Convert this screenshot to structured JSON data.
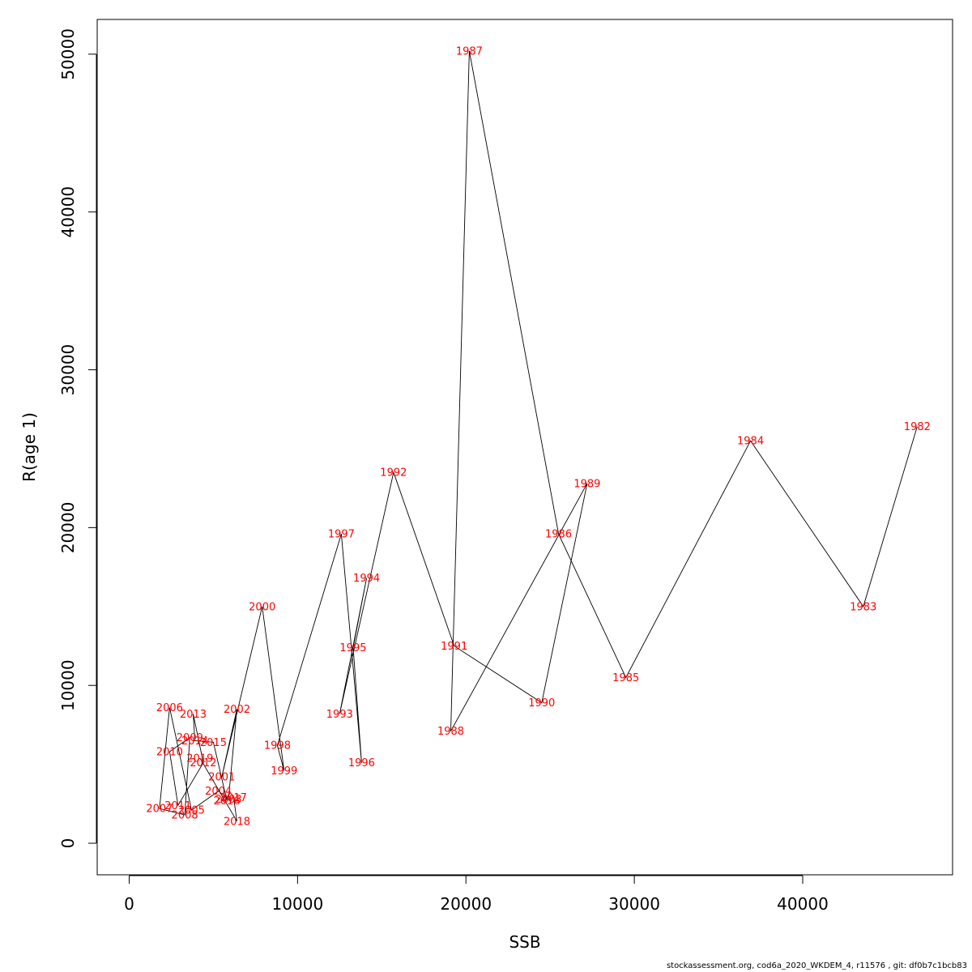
{
  "chart_data": {
    "type": "scatter",
    "xlabel": "SSB",
    "ylabel": "R(age 1)",
    "xlim": [
      -1900,
      48900
    ],
    "ylim": [
      -2000,
      52200
    ],
    "xticks": [
      0,
      10000,
      20000,
      30000,
      40000
    ],
    "yticks": [
      0,
      10000,
      20000,
      30000,
      40000,
      50000
    ],
    "label_color": "#ff0000",
    "line_color": "#000000",
    "points": [
      {
        "year": "1982",
        "x": 46800,
        "y": 26400
      },
      {
        "year": "1983",
        "x": 43600,
        "y": 15000
      },
      {
        "year": "1984",
        "x": 36900,
        "y": 25500
      },
      {
        "year": "1985",
        "x": 29500,
        "y": 10500
      },
      {
        "year": "1986",
        "x": 25500,
        "y": 19600
      },
      {
        "year": "1987",
        "x": 20200,
        "y": 50200
      },
      {
        "year": "1988",
        "x": 19100,
        "y": 7100
      },
      {
        "year": "1989",
        "x": 27200,
        "y": 22800
      },
      {
        "year": "1990",
        "x": 24500,
        "y": 8900
      },
      {
        "year": "1991",
        "x": 19300,
        "y": 12500
      },
      {
        "year": "1992",
        "x": 15700,
        "y": 23500
      },
      {
        "year": "1993",
        "x": 12500,
        "y": 8200
      },
      {
        "year": "1994",
        "x": 14100,
        "y": 16800
      },
      {
        "year": "1995",
        "x": 13300,
        "y": 12400
      },
      {
        "year": "1996",
        "x": 13800,
        "y": 5100
      },
      {
        "year": "1997",
        "x": 12600,
        "y": 19600
      },
      {
        "year": "1998",
        "x": 8800,
        "y": 6200
      },
      {
        "year": "1999",
        "x": 9200,
        "y": 4600
      },
      {
        "year": "2000",
        "x": 7900,
        "y": 15000
      },
      {
        "year": "2001",
        "x": 5500,
        "y": 4200
      },
      {
        "year": "2002",
        "x": 6400,
        "y": 8500
      },
      {
        "year": "2003",
        "x": 5900,
        "y": 2800
      },
      {
        "year": "2004",
        "x": 5300,
        "y": 3300
      },
      {
        "year": "2005",
        "x": 3700,
        "y": 2100
      },
      {
        "year": "2006",
        "x": 2400,
        "y": 8600
      },
      {
        "year": "2007",
        "x": 1800,
        "y": 2200
      },
      {
        "year": "2008",
        "x": 3300,
        "y": 1800
      },
      {
        "year": "2009",
        "x": 3600,
        "y": 6700
      },
      {
        "year": "2010",
        "x": 2400,
        "y": 5800
      },
      {
        "year": "2011",
        "x": 2900,
        "y": 2400
      },
      {
        "year": "2012",
        "x": 4400,
        "y": 5100
      },
      {
        "year": "2013",
        "x": 3800,
        "y": 8200
      },
      {
        "year": "2014",
        "x": 3900,
        "y": 6500
      },
      {
        "year": "2015",
        "x": 5000,
        "y": 6400
      },
      {
        "year": "2016",
        "x": 5800,
        "y": 2700
      },
      {
        "year": "2017",
        "x": 6200,
        "y": 2900
      },
      {
        "year": "2018",
        "x": 6400,
        "y": 1400
      },
      {
        "year": "2019",
        "x": 4200,
        "y": 5400
      }
    ]
  },
  "footer": {
    "text": "stockassessment.org, cod6a_2020_WKDEM_4, r11576 , git: df0b7c1bcb83"
  }
}
